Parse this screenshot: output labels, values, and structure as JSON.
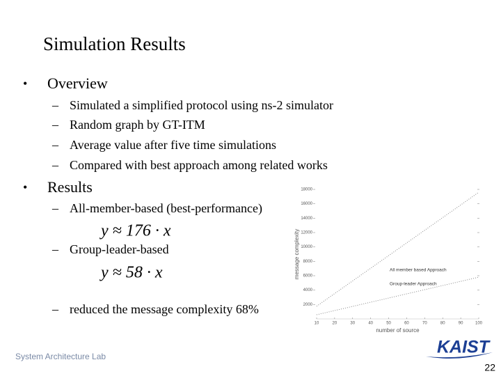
{
  "slide": {
    "title": "Simulation Results",
    "sections": [
      {
        "text": "Overview",
        "items": [
          {
            "text": "Simulated a simplified protocol using ns-2 simulator"
          },
          {
            "text": "Random graph by GT-ITM"
          },
          {
            "text": "Average value after five time simulations"
          },
          {
            "text": "Compared with best approach among related works"
          }
        ]
      },
      {
        "text": "Results",
        "items": [
          {
            "text": "All-member-based (best-performance)",
            "formula": "y ≈ 176 · x"
          },
          {
            "text": "Group-leader-based",
            "formula": "y ≈ 58 · x"
          },
          {
            "text": "reduced the message complexity 68%"
          }
        ]
      }
    ],
    "footer": "System Architecture Lab",
    "logo": "KAIST",
    "page_number": "22"
  },
  "chart_data": {
    "type": "line",
    "x_label": "number of source",
    "y_label": "message complexity",
    "x": [
      10,
      20,
      30,
      40,
      50,
      60,
      70,
      80,
      90,
      100
    ],
    "series": [
      {
        "name": "All member based Approach",
        "color": "#888888",
        "values": [
          1760,
          3520,
          5280,
          7040,
          8800,
          10560,
          12320,
          14080,
          15840,
          17600
        ]
      },
      {
        "name": "Group-leader Approach",
        "color": "#888888",
        "values": [
          580,
          1160,
          1740,
          2320,
          2900,
          3480,
          4060,
          4640,
          5220,
          5800
        ]
      }
    ],
    "xlim": [
      10,
      100
    ],
    "xticks": [
      10,
      20,
      30,
      40,
      50,
      60,
      70,
      80,
      90,
      100
    ],
    "ylim": [
      0,
      18000
    ],
    "yticks": [
      2000,
      4000,
      6000,
      8000,
      10000,
      12000,
      14000,
      16000,
      18000
    ]
  }
}
